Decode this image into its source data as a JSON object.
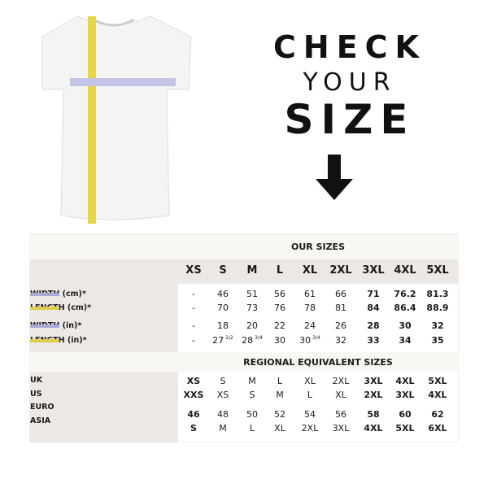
{
  "hero": {
    "line1": "CHECK",
    "line2": "YOUR",
    "line3": "SIZE",
    "arrow_icon": "arrow-down-icon"
  },
  "colors": {
    "width_swatch": "#a7a9d6",
    "length_swatch": "#dccd4a",
    "header_band": "#ece8e5",
    "title_band": "#f9f7f4"
  },
  "our_sizes": {
    "title": "OUR SIZES",
    "sizes": [
      "XS",
      "S",
      "M",
      "L",
      "XL",
      "2XL",
      "3XL",
      "4XL",
      "5XL"
    ],
    "rows": [
      {
        "label": "WIDTH (cm)*",
        "swatch": "width",
        "values": [
          "-",
          "46",
          "51",
          "56",
          "61",
          "66",
          "71",
          "76.2",
          "81.3"
        ]
      },
      {
        "label": "LENGTH (cm)*",
        "swatch": "length",
        "values": [
          "-",
          "70",
          "73",
          "76",
          "78",
          "81",
          "84",
          "86.4",
          "88.9"
        ]
      },
      {
        "label": "WIDTH (in)*",
        "swatch": "width",
        "values": [
          "-",
          "18",
          "20",
          "22",
          "24",
          "26",
          "28",
          "30",
          "32"
        ]
      },
      {
        "label": "LENGTH (in)*",
        "swatch": "length",
        "values": [
          "-",
          "27",
          "28",
          "30",
          "30",
          "32",
          "33",
          "34",
          "35"
        ],
        "fractions": [
          "",
          "1/2",
          "3/4",
          "",
          "3/4",
          "",
          "",
          "",
          ""
        ]
      }
    ]
  },
  "regional": {
    "title": "REGIONAL EQUIVALENT SIZES",
    "labels": [
      "UK",
      "US",
      "EURO",
      "ASIA"
    ],
    "rows": [
      [
        "XS",
        "S",
        "M",
        "L",
        "XL",
        "2XL",
        "3XL",
        "4XL",
        "5XL"
      ],
      [
        "XXS",
        "XS",
        "S",
        "M",
        "L",
        "XL",
        "2XL",
        "3XL",
        "4XL"
      ],
      [
        "46",
        "48",
        "50",
        "52",
        "54",
        "56",
        "58",
        "60",
        "62"
      ],
      [
        "S",
        "M",
        "L",
        "XL",
        "2XL",
        "3XL",
        "4XL",
        "5XL",
        "6XL"
      ]
    ]
  }
}
